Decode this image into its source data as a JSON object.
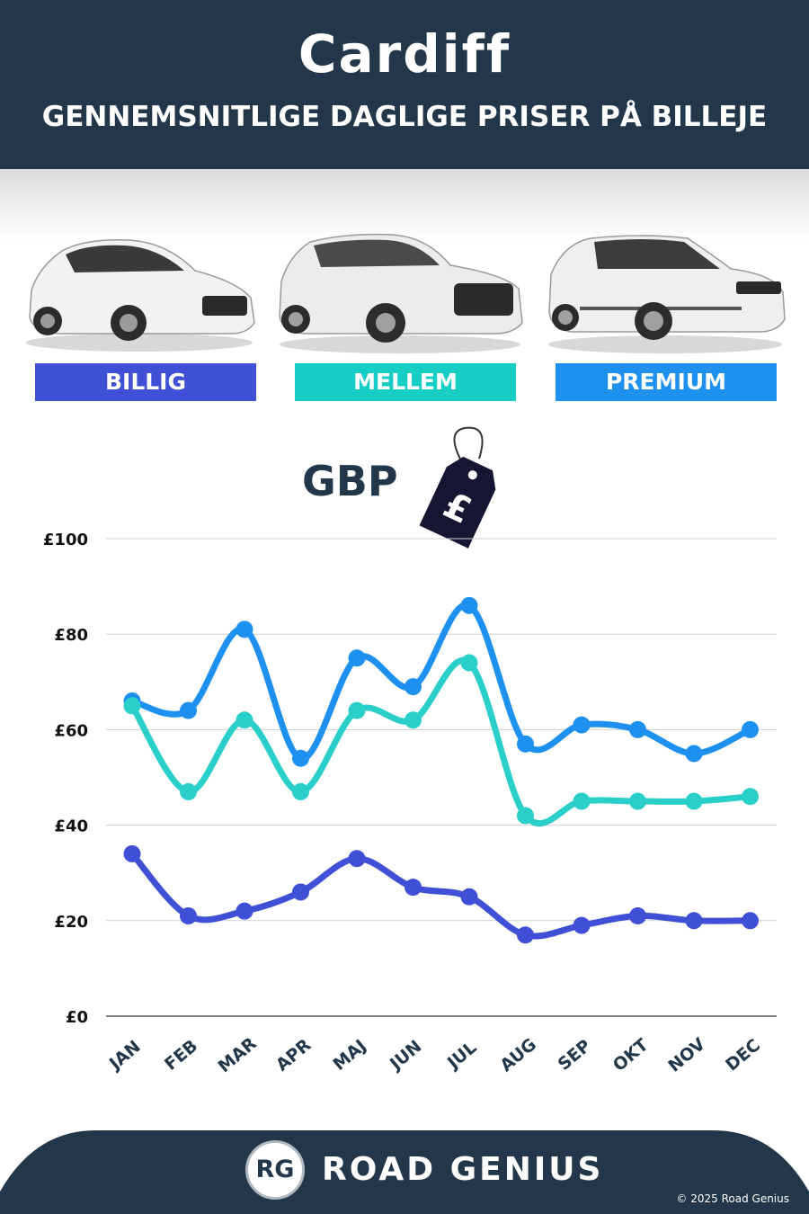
{
  "header": {
    "city": "Cardiff",
    "subtitle": "GENNEMSNITLIGE DAGLIGE PRISER PÅ BILLEJE"
  },
  "categories": [
    {
      "label": "BILLIG",
      "color": "#3f4fd6",
      "car": "hatchback-car-image"
    },
    {
      "label": "MELLEM",
      "color": "#17cec7",
      "car": "suv-car-image"
    },
    {
      "label": "PREMIUM",
      "color": "#1e90f0",
      "car": "luxury-suv-car-image"
    }
  ],
  "currency": {
    "label": "GBP",
    "tag_symbol": "£",
    "icon": "price-tag-icon"
  },
  "chart_data": {
    "type": "line",
    "categories": [
      "JAN",
      "FEB",
      "MAR",
      "APR",
      "MAJ",
      "JUN",
      "JUL",
      "AUG",
      "SEP",
      "OKT",
      "NOV",
      "DEC"
    ],
    "y_ticks": [
      "£0",
      "£20",
      "£40",
      "£60",
      "£80",
      "£100"
    ],
    "ylim": [
      0,
      100
    ],
    "grid": true,
    "series": [
      {
        "name": "PREMIUM",
        "color": "#1e90f0",
        "values": [
          66,
          64,
          81,
          54,
          75,
          69,
          86,
          57,
          61,
          60,
          55,
          60
        ]
      },
      {
        "name": "MELLEM",
        "color": "#2acfc9",
        "values": [
          65,
          47,
          62,
          47,
          64,
          62,
          74,
          42,
          45,
          45,
          45,
          46
        ]
      },
      {
        "name": "BILLIG",
        "color": "#3f4fd6",
        "values": [
          34,
          21,
          22,
          26,
          33,
          27,
          25,
          17,
          19,
          21,
          20,
          20
        ]
      }
    ]
  },
  "footer": {
    "logo_initials": "RG",
    "brand": "ROAD GENIUS",
    "copyright": "© 2025 Road Genius",
    "background": "#22384a"
  }
}
